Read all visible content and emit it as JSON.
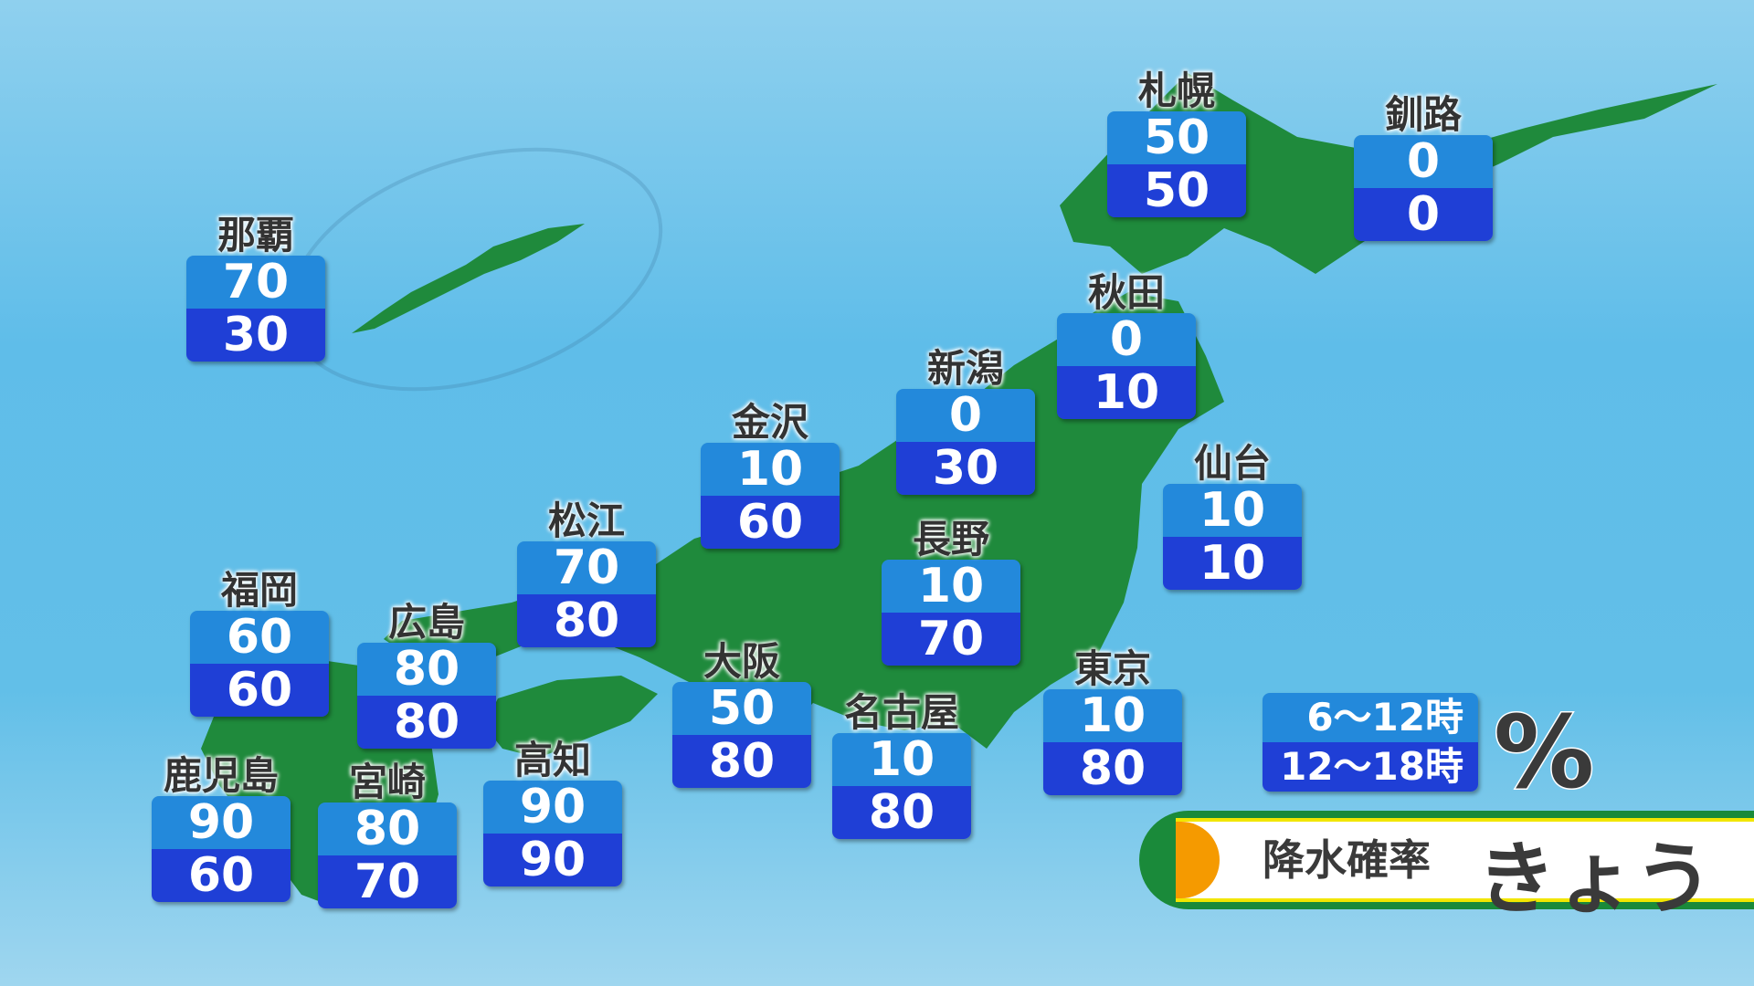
{
  "cities": [
    {
      "name": "札幌",
      "am": "50",
      "pm": "50"
    },
    {
      "name": "釧路",
      "am": "0",
      "pm": "0"
    },
    {
      "name": "那覇",
      "am": "70",
      "pm": "30"
    },
    {
      "name": "秋田",
      "am": "0",
      "pm": "10"
    },
    {
      "name": "新潟",
      "am": "0",
      "pm": "30"
    },
    {
      "name": "金沢",
      "am": "10",
      "pm": "60"
    },
    {
      "name": "仙台",
      "am": "10",
      "pm": "10"
    },
    {
      "name": "松江",
      "am": "70",
      "pm": "80"
    },
    {
      "name": "長野",
      "am": "10",
      "pm": "70"
    },
    {
      "name": "福岡",
      "am": "60",
      "pm": "60"
    },
    {
      "name": "広島",
      "am": "80",
      "pm": "80"
    },
    {
      "name": "大阪",
      "am": "50",
      "pm": "80"
    },
    {
      "name": "東京",
      "am": "10",
      "pm": "80"
    },
    {
      "name": "名古屋",
      "am": "10",
      "pm": "80"
    },
    {
      "name": "高知",
      "am": "90",
      "pm": "90"
    },
    {
      "name": "鹿児島",
      "am": "90",
      "pm": "60"
    },
    {
      "name": "宮崎",
      "am": "80",
      "pm": "70"
    }
  ],
  "legend": {
    "am": "6〜12時",
    "pm": "12〜18時",
    "unit": "%"
  },
  "banner": {
    "title": "降水確率",
    "day": "きょう"
  },
  "colors": {
    "am": "#2389db",
    "pm": "#1f3fd6",
    "land": "#1f8a3c",
    "sea": "#5fbde9"
  }
}
